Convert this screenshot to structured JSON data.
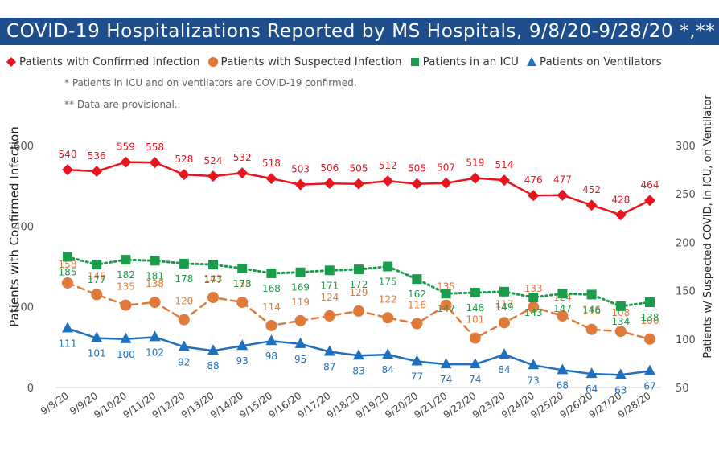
{
  "title": "COVID-19 Hospitalizations Reported by MS Hospitals, 9/8/20-9/28/20 *,**",
  "notes": [
    "* Patients in ICU and on ventilators are COVID-19 confirmed.",
    "** Data are provisional."
  ],
  "colors": {
    "confirmed": "#e8141e",
    "suspected": "#e07a3a",
    "icu": "#1a9c4a",
    "ventilators": "#2070c0",
    "title_bg": "#1f4e8c"
  },
  "chart_data": {
    "type": "line",
    "categories": [
      "9/8/20",
      "9/9/20",
      "9/10/20",
      "9/11/20",
      "9/12/20",
      "9/13/20",
      "9/14/20",
      "9/15/20",
      "9/16/20",
      "9/17/20",
      "9/18/20",
      "9/19/20",
      "9/20/20",
      "9/21/20",
      "9/22/20",
      "9/23/20",
      "9/24/20",
      "9/25/20",
      "9/26/20",
      "9/27/20",
      "9/28/20"
    ],
    "ylabel": "Patients with Confirmed Infection",
    "y2label": "Patients w/ Suspected COVID, in ICU, on Ventilator",
    "ylim": [
      0,
      600
    ],
    "yticks": [
      0,
      200,
      400,
      600
    ],
    "y2lim": [
      50,
      300
    ],
    "y2ticks": [
      50,
      100,
      150,
      200,
      250,
      300
    ],
    "legend_position": "top",
    "grid": false,
    "series": [
      {
        "name": "Patients with Confirmed Infection",
        "axis": "left",
        "marker": "diamond",
        "line": "solid",
        "color": "#e8141e",
        "values": [
          540,
          536,
          559,
          558,
          528,
          524,
          532,
          518,
          503,
          506,
          505,
          512,
          505,
          507,
          519,
          514,
          476,
          477,
          452,
          428,
          464
        ]
      },
      {
        "name": "Patients with Suspected Infection",
        "axis": "right",
        "marker": "circle",
        "line": "dashed",
        "color": "#e07a3a",
        "values": [
          158,
          146,
          135,
          138,
          120,
          143,
          138,
          114,
          119,
          124,
          129,
          122,
          116,
          135,
          101,
          117,
          133,
          124,
          110,
          108,
          100
        ]
      },
      {
        "name": "Patients in an ICU",
        "axis": "right",
        "marker": "square",
        "line": "dotted",
        "color": "#1a9c4a",
        "values": [
          185,
          177,
          182,
          181,
          178,
          177,
          173,
          168,
          169,
          171,
          172,
          175,
          162,
          147,
          148,
          149,
          143,
          147,
          146,
          134,
          138
        ]
      },
      {
        "name": "Patients on Ventilators",
        "axis": "right",
        "marker": "triangle",
        "line": "solid",
        "color": "#2070c0",
        "values": [
          111,
          101,
          100,
          102,
          92,
          88,
          93,
          98,
          95,
          87,
          83,
          84,
          77,
          74,
          74,
          84,
          73,
          68,
          64,
          63,
          67
        ]
      }
    ]
  }
}
